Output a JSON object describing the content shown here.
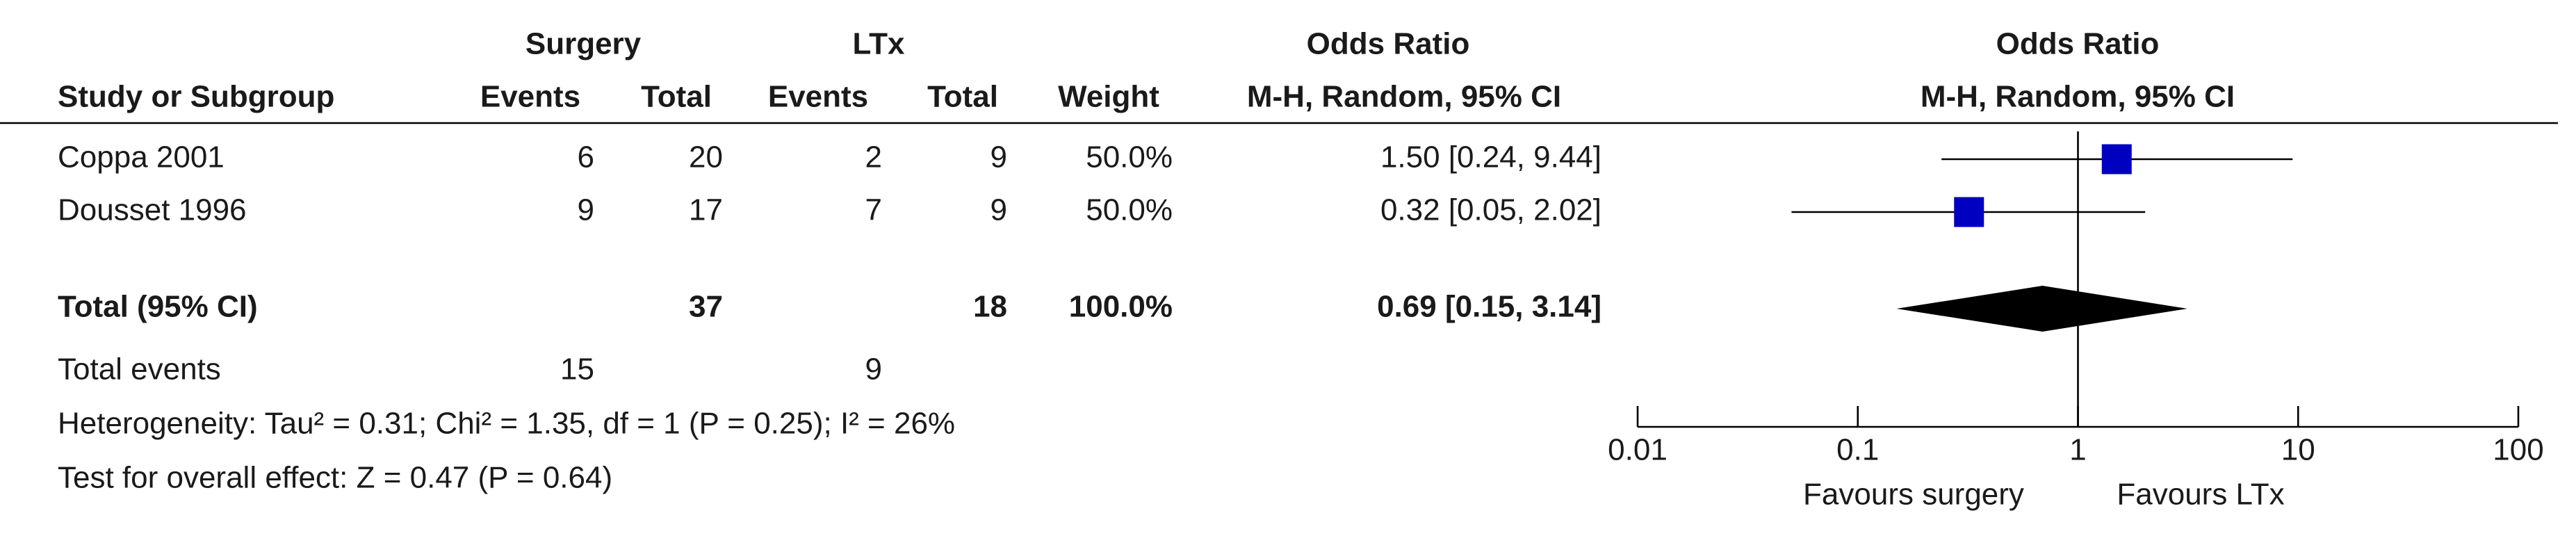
{
  "chart_data": {
    "type": "forest",
    "group_headers": {
      "surgery": "Surgery",
      "ltx": "LTx",
      "or_table": "Odds Ratio",
      "or_plot": "Odds Ratio"
    },
    "columns": {
      "study": "Study or Subgroup",
      "events_surgery": "Events",
      "total_surgery": "Total",
      "events_ltx": "Events",
      "total_ltx": "Total",
      "weight": "Weight",
      "ci_table": "M-H, Random, 95% CI",
      "ci_plot": "M-H, Random, 95% CI"
    },
    "studies": [
      {
        "name": "Coppa 2001",
        "events_surgery": 6,
        "total_surgery": 20,
        "events_ltx": 2,
        "total_ltx": 9,
        "weight": "50.0%",
        "ci_label": "1.50 [0.24, 9.44]",
        "or": 1.5,
        "ci_low": 0.24,
        "ci_high": 9.44
      },
      {
        "name": "Dousset 1996",
        "events_surgery": 9,
        "total_surgery": 17,
        "events_ltx": 7,
        "total_ltx": 9,
        "weight": "50.0%",
        "ci_label": "0.32 [0.05, 2.02]",
        "or": 0.32,
        "ci_low": 0.05,
        "ci_high": 2.02
      }
    ],
    "total": {
      "name": "Total (95% CI)",
      "total_surgery": 37,
      "total_ltx": 18,
      "weight": "100.0%",
      "ci_label": "0.69 [0.15, 3.14]",
      "or": 0.69,
      "ci_low": 0.15,
      "ci_high": 3.14
    },
    "total_events": {
      "name": "Total events",
      "events_surgery": 15,
      "events_ltx": 9
    },
    "heterogeneity": "Heterogeneity: Tau² = 0.31; Chi² = 1.35, df = 1 (P = 0.25); I² = 26%",
    "overall_effect": "Test for overall effect: Z = 0.47 (P = 0.64)",
    "favours_left": "Favours surgery",
    "favours_right": "Favours LTx",
    "xlim": [
      0.01,
      100
    ],
    "xticks": [
      0.01,
      0.1,
      1,
      10,
      100
    ],
    "log_scale": true,
    "reference_line": 1,
    "study_color": "#0000c0",
    "total_color": "#000000"
  }
}
